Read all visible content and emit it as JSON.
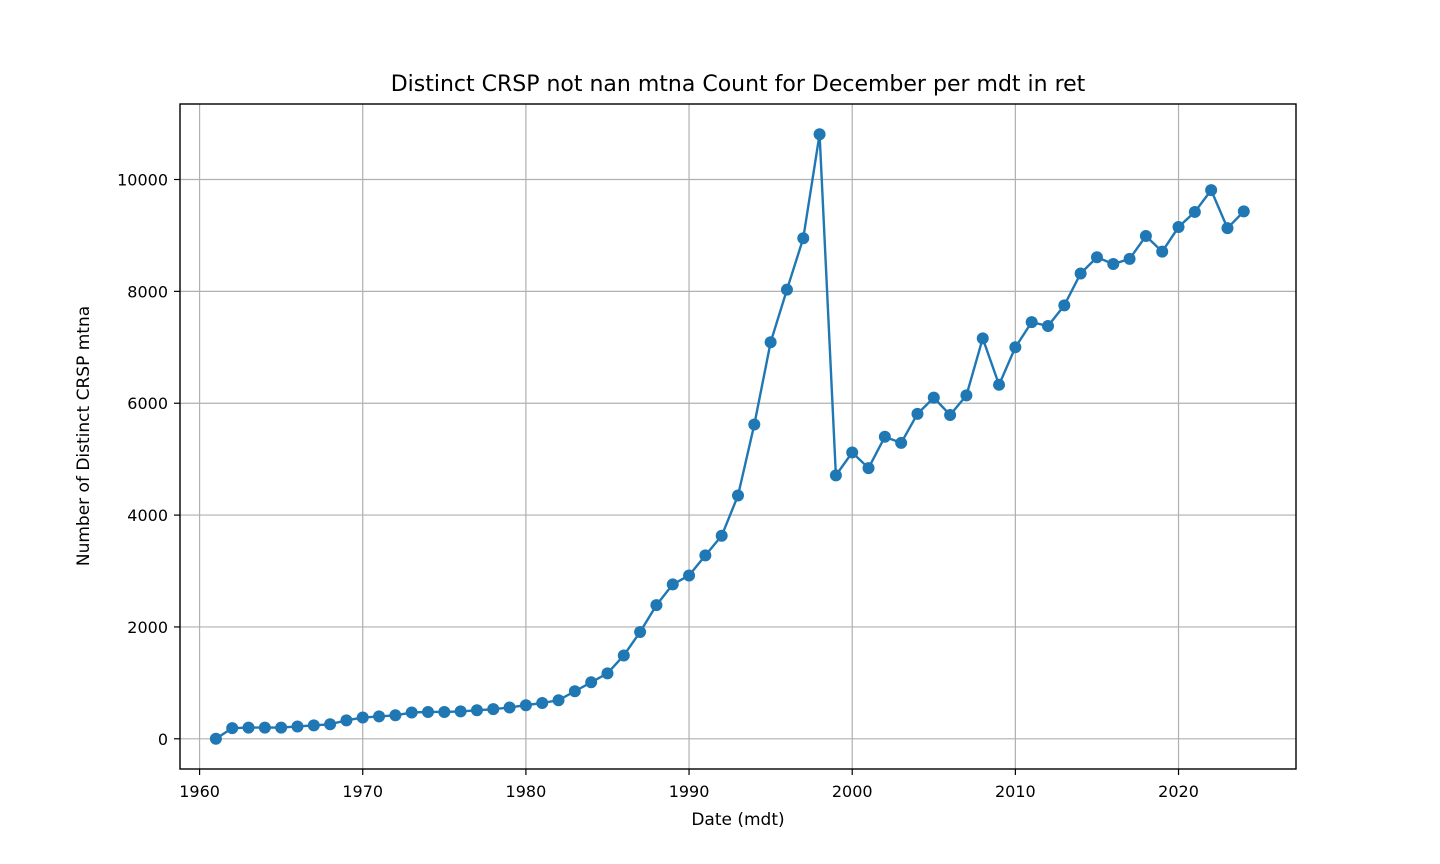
{
  "chart_data": {
    "type": "line",
    "title": "Distinct CRSP not nan mtna Count for December per mdt in ret",
    "xlabel": "Date (mdt)",
    "ylabel": "Number of Distinct CRSP mtna",
    "xlim": [
      1958.8,
      2027.2
    ],
    "ylim": [
      -540,
      11350
    ],
    "xticks": [
      1960,
      1970,
      1980,
      1990,
      2000,
      2010,
      2020
    ],
    "yticks": [
      0,
      2000,
      4000,
      6000,
      8000,
      10000
    ],
    "grid": true,
    "color": "#1f77b4",
    "marker": "circle",
    "series": [
      {
        "x": [
          1961,
          1962,
          1963,
          1964,
          1965,
          1966,
          1967,
          1968,
          1969,
          1970,
          1971,
          1972,
          1973,
          1974,
          1975,
          1976,
          1977,
          1978,
          1979,
          1980,
          1981,
          1982,
          1983,
          1984,
          1985,
          1986,
          1987,
          1988,
          1989,
          1990,
          1991,
          1992,
          1993,
          1994,
          1995,
          1996,
          1997,
          1998,
          1999,
          2000,
          2001,
          2002,
          2003,
          2004,
          2005,
          2006,
          2007,
          2008,
          2009,
          2010,
          2011,
          2012,
          2013,
          2014,
          2015,
          2016,
          2017,
          2018,
          2019,
          2020,
          2021,
          2022,
          2023,
          2024
        ],
        "y": [
          0,
          190,
          200,
          200,
          200,
          220,
          240,
          260,
          330,
          380,
          400,
          420,
          470,
          480,
          480,
          490,
          510,
          530,
          560,
          600,
          640,
          690,
          850,
          1010,
          1170,
          1490,
          1910,
          2390,
          2760,
          2920,
          3280,
          3630,
          4350,
          5620,
          7090,
          8030,
          8950,
          10810,
          4710,
          5120,
          4840,
          5400,
          5290,
          5810,
          6100,
          5790,
          6140,
          7160,
          6330,
          7000,
          7450,
          7380,
          7750,
          8320,
          8610,
          8490,
          8580,
          8990,
          8710,
          9150,
          9420,
          9810,
          9130,
          9430
        ]
      }
    ]
  }
}
